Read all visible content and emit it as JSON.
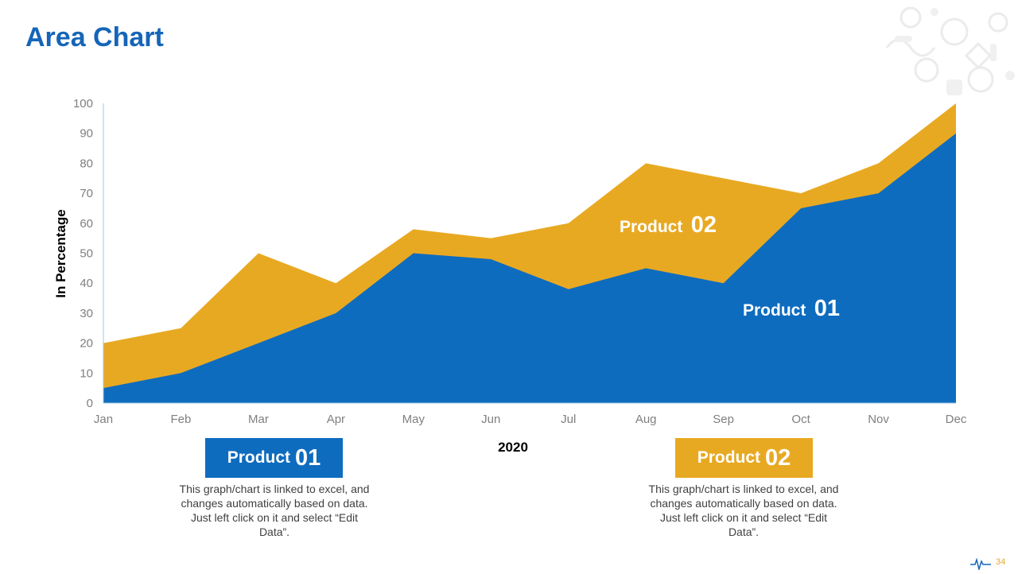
{
  "title": "Area Chart",
  "page_number": "34",
  "colors": {
    "product_01": "#0e6cbf",
    "product_02": "#e8a922",
    "title": "#1565b8"
  },
  "icons": [
    "medical-pattern-icon",
    "heartbeat-logo-icon"
  ],
  "area_labels": {
    "product_01": {
      "prefix": "Product",
      "num": "01"
    },
    "product_02": {
      "prefix": "Product",
      "num": "02"
    }
  },
  "legend": [
    {
      "prefix": "Product",
      "num": "01",
      "description": "This graph/chart is linked to excel, and changes automatically based on data. Just left click on it and select “Edit Data”."
    },
    {
      "prefix": "Product",
      "num": "02",
      "description": "This graph/chart is linked to excel, and changes automatically based on data. Just left click on it and select “Edit Data”."
    }
  ],
  "chart_data": {
    "type": "area",
    "title": "",
    "xlabel": "2020",
    "ylabel": "In Percentage",
    "categories": [
      "Jan",
      "Feb",
      "Mar",
      "Apr",
      "May",
      "Jun",
      "Jul",
      "Aug",
      "Sep",
      "Oct",
      "Nov",
      "Dec"
    ],
    "ylim": [
      0,
      100
    ],
    "yticks": [
      0,
      10,
      20,
      30,
      40,
      50,
      60,
      70,
      80,
      90,
      100
    ],
    "grid": false,
    "overlapping": true,
    "series": [
      {
        "name": "Product 02",
        "color": "#e8a922",
        "values": [
          20,
          25,
          50,
          40,
          58,
          55,
          60,
          80,
          75,
          70,
          80,
          100
        ]
      },
      {
        "name": "Product 01",
        "color": "#0e6cbf",
        "values": [
          5,
          10,
          20,
          30,
          50,
          48,
          38,
          45,
          40,
          65,
          70,
          90
        ]
      }
    ]
  }
}
